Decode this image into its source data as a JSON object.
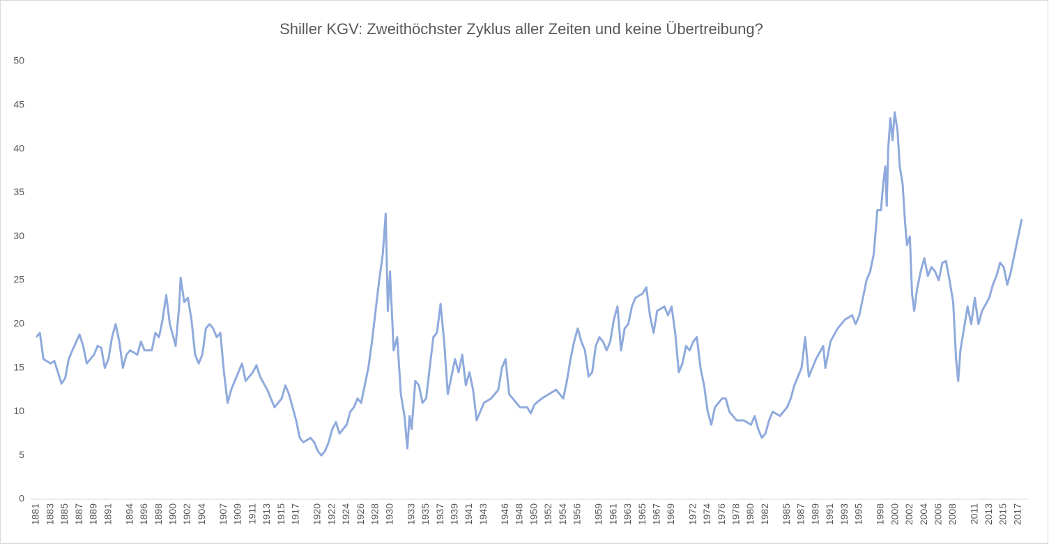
{
  "chart_data": {
    "type": "line",
    "title": "Shiller KGV: Zweithöchster Zyklus aller Zeiten und keine Übertreibung?",
    "color": "#8faadc",
    "xlim": [
      1881,
      2017.7
    ],
    "xticks": [
      1881,
      1883,
      1885,
      1887,
      1889,
      1891,
      1894,
      1896,
      1898,
      1900,
      1902,
      1904,
      1907,
      1909,
      1911,
      1913,
      1915,
      1917,
      1920,
      1922,
      1924,
      1926,
      1928,
      1930,
      1933,
      1935,
      1937,
      1939,
      1941,
      1943,
      1946,
      1948,
      1950,
      1952,
      1954,
      1956,
      1959,
      1961,
      1963,
      1965,
      1967,
      1969,
      1972,
      1974,
      1976,
      1978,
      1980,
      1982,
      1985,
      1987,
      1989,
      1991,
      1993,
      1995,
      1998,
      2000,
      2002,
      2004,
      2006,
      2008,
      2011,
      2013,
      2015,
      2017
    ],
    "ylim": [
      0,
      50
    ],
    "yticks": [
      0,
      5,
      10,
      15,
      20,
      25,
      30,
      35,
      40,
      45,
      50
    ],
    "x": [
      1881,
      1881.5,
      1882,
      1883,
      1883.5,
      1884,
      1884.5,
      1885,
      1885.5,
      1886,
      1887,
      1887.5,
      1888,
      1889,
      1889.5,
      1890,
      1890.5,
      1891,
      1891.5,
      1892,
      1892.5,
      1893,
      1893.5,
      1894,
      1895,
      1895.5,
      1896,
      1897,
      1897.5,
      1898,
      1898.5,
      1899,
      1899.5,
      1900,
      1900.3,
      1900.8,
      1901,
      1901.5,
      1902,
      1902.5,
      1903,
      1903.5,
      1904,
      1904.5,
      1905,
      1905.5,
      1906,
      1906.5,
      1907,
      1907.5,
      1908,
      1909,
      1909.5,
      1910,
      1911,
      1911.5,
      1912,
      1913,
      1913.5,
      1914,
      1915,
      1915.5,
      1916,
      1917,
      1917.5,
      1918,
      1919,
      1919.5,
      1920,
      1920.5,
      1921,
      1921.5,
      1922,
      1922.5,
      1923,
      1924,
      1924.5,
      1925,
      1925.5,
      1926,
      1926.5,
      1927,
      1927.5,
      1928,
      1928.5,
      1929,
      1929.4,
      1929.7,
      1930,
      1930.5,
      1931,
      1931.5,
      1932,
      1932.4,
      1932.7,
      1933,
      1933.5,
      1934,
      1934.5,
      1935,
      1935.5,
      1936,
      1936.5,
      1937,
      1937.5,
      1938,
      1938.5,
      1939,
      1939.5,
      1940,
      1940.5,
      1941,
      1941.5,
      1942,
      1942.5,
      1943,
      1944,
      1945,
      1945.5,
      1946,
      1946.5,
      1947,
      1948,
      1949,
      1949.5,
      1950,
      1951,
      1952,
      1953,
      1954,
      1954.5,
      1955,
      1955.5,
      1956,
      1956.5,
      1957,
      1957.5,
      1958,
      1958.5,
      1959,
      1959.5,
      1960,
      1960.5,
      1961,
      1961.5,
      1962,
      1962.5,
      1963,
      1963.5,
      1964,
      1965,
      1965.5,
      1966,
      1966.5,
      1967,
      1968,
      1968.5,
      1969,
      1969.5,
      1970,
      1970.5,
      1971,
      1971.5,
      1972,
      1972.5,
      1973,
      1973.5,
      1974,
      1974.5,
      1975,
      1975.5,
      1976,
      1976.5,
      1977,
      1978,
      1979,
      1980,
      1980.5,
      1981,
      1981.5,
      1982,
      1982.5,
      1983,
      1984,
      1985,
      1985.5,
      1986,
      1987,
      1987.5,
      1988,
      1988.5,
      1989,
      1990,
      1990.3,
      1991,
      1992,
      1993,
      1994,
      1994.5,
      1995,
      1995.5,
      1996,
      1996.5,
      1997,
      1997.5,
      1998,
      1998.3,
      1998.6,
      1998.8,
      1999,
      1999.3,
      1999.6,
      1999.9,
      2000.3,
      2000.6,
      2001,
      2001.3,
      2001.6,
      2002,
      2002.3,
      2002.6,
      2003,
      2003.5,
      2004,
      2004.5,
      2005,
      2005.5,
      2006,
      2006.5,
      2007,
      2007.5,
      2008,
      2008.4,
      2008.7,
      2009,
      2009.5,
      2010,
      2010.5,
      2011,
      2011.5,
      2012,
      2013,
      2013.5,
      2014,
      2014.5,
      2015,
      2015.5,
      2016,
      2016.5,
      2017,
      2017.5
    ],
    "values": [
      18.5,
      19,
      16,
      15.5,
      15.8,
      14.5,
      13.2,
      13.8,
      16,
      17,
      18.8,
      17.5,
      15.5,
      16.5,
      17.5,
      17.3,
      15,
      16,
      18.5,
      20,
      18,
      15,
      16.5,
      17,
      16.5,
      18,
      17,
      17,
      19,
      18.5,
      20.5,
      23.3,
      20,
      18.5,
      17.5,
      22,
      25.3,
      22.5,
      23,
      20.5,
      16.5,
      15.5,
      16.5,
      19.5,
      20,
      19.5,
      18.5,
      19,
      14.5,
      11,
      12.5,
      14.5,
      15.5,
      13.5,
      14.5,
      15.3,
      14,
      12.5,
      11.5,
      10.5,
      11.5,
      13,
      12,
      9,
      7,
      6.5,
      7,
      6.5,
      5.5,
      5,
      5.5,
      6.5,
      8,
      8.8,
      7.5,
      8.5,
      10,
      10.5,
      11.5,
      11,
      13,
      15,
      18,
      21.5,
      25,
      28,
      32.6,
      21.5,
      26,
      17,
      18.5,
      12,
      9.5,
      5.8,
      9.5,
      8,
      13.5,
      13,
      11,
      11.5,
      15,
      18.5,
      19,
      22.3,
      18,
      12,
      14,
      16,
      14.5,
      16.5,
      13,
      14.5,
      12.5,
      9,
      10,
      11,
      11.5,
      12.5,
      15,
      16,
      12,
      11.5,
      10.5,
      10.5,
      9.8,
      10.8,
      11.5,
      12,
      12.5,
      11.5,
      13.5,
      16,
      18,
      19.5,
      18,
      17,
      14,
      14.5,
      17.5,
      18.5,
      18,
      17,
      18,
      20.5,
      22,
      17,
      19.5,
      20,
      22,
      23,
      23.5,
      24.2,
      21,
      19,
      21.5,
      22,
      21,
      22,
      19,
      14.5,
      15.5,
      17.5,
      17,
      18,
      18.5,
      15,
      13,
      10,
      8.5,
      10.5,
      11,
      11.5,
      11.5,
      10,
      9,
      9,
      8.5,
      9.5,
      8,
      7,
      7.5,
      9,
      10,
      9.5,
      10.5,
      11.5,
      13,
      15,
      18.5,
      14,
      15,
      16,
      17.5,
      15,
      18,
      19.5,
      20.5,
      21,
      20,
      21,
      23,
      25,
      26,
      28,
      33,
      33,
      36,
      38,
      33.5,
      40,
      43.5,
      41,
      44.2,
      42,
      38,
      36,
      32,
      29,
      30,
      23.5,
      21.5,
      24,
      26,
      27.5,
      25.5,
      26.5,
      26,
      25,
      27,
      27.2,
      25,
      22.5,
      16,
      13.5,
      17,
      19.5,
      22,
      20,
      23,
      20,
      21.5,
      23,
      24.5,
      25.5,
      27,
      26.5,
      24.5,
      26,
      28,
      30,
      32
    ]
  }
}
